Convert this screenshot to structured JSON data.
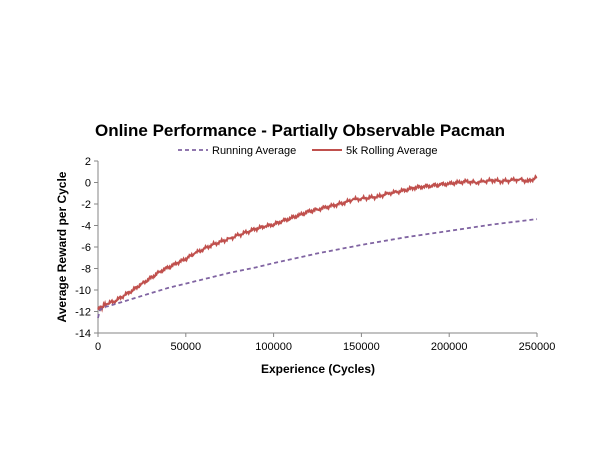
{
  "chart_data": {
    "type": "line",
    "title": "Online Performance - Partially Observable Pacman",
    "xlabel": "Experience (Cycles)",
    "ylabel": "Average Reward per Cycle",
    "xlim": [
      0,
      250000
    ],
    "ylim": [
      -14,
      2
    ],
    "x_ticks": [
      0,
      50000,
      100000,
      150000,
      200000,
      250000
    ],
    "y_ticks": [
      2,
      0,
      -2,
      -4,
      -6,
      -8,
      -10,
      -12,
      -14
    ],
    "grid": false,
    "legend_position": "top",
    "series": [
      {
        "name": "Running Average",
        "color": "#8064a2",
        "style": "dashed",
        "x": [
          0,
          1000,
          3000,
          6000,
          10000,
          20000,
          30000,
          40000,
          50000,
          60000,
          75000,
          90000,
          100000,
          125000,
          150000,
          175000,
          200000,
          225000,
          250000
        ],
        "y": [
          -12.6,
          -11.9,
          -11.6,
          -11.5,
          -11.3,
          -10.8,
          -10.3,
          -9.8,
          -9.4,
          -9.0,
          -8.4,
          -7.9,
          -7.5,
          -6.6,
          -5.8,
          -5.1,
          -4.5,
          -3.9,
          -3.4
        ]
      },
      {
        "name": "5k Rolling Average",
        "color": "#c0504d",
        "style": "solid",
        "x": [
          0,
          2000,
          5000,
          10000,
          15000,
          20000,
          25000,
          30000,
          35000,
          40000,
          45000,
          50000,
          55000,
          60000,
          65000,
          70000,
          75000,
          80000,
          85000,
          90000,
          95000,
          100000,
          105000,
          110000,
          115000,
          120000,
          125000,
          130000,
          135000,
          140000,
          145000,
          150000,
          155000,
          160000,
          165000,
          170000,
          175000,
          180000,
          185000,
          190000,
          195000,
          200000,
          205000,
          210000,
          215000,
          220000,
          225000,
          230000,
          235000,
          240000,
          245000,
          250000
        ],
        "y": [
          -11.7,
          -11.6,
          -11.3,
          -11.0,
          -10.5,
          -10.0,
          -9.4,
          -8.9,
          -8.3,
          -7.9,
          -7.5,
          -7.1,
          -6.6,
          -6.2,
          -5.8,
          -5.5,
          -5.2,
          -4.9,
          -4.6,
          -4.3,
          -4.1,
          -3.9,
          -3.6,
          -3.3,
          -3.0,
          -2.7,
          -2.5,
          -2.3,
          -2.1,
          -1.9,
          -1.6,
          -1.5,
          -1.4,
          -1.3,
          -1.0,
          -0.9,
          -0.7,
          -0.5,
          -0.4,
          -0.3,
          -0.2,
          -0.1,
          0.0,
          0.1,
          0.0,
          0.1,
          0.2,
          0.1,
          0.2,
          0.3,
          0.1,
          0.5
        ]
      }
    ]
  }
}
